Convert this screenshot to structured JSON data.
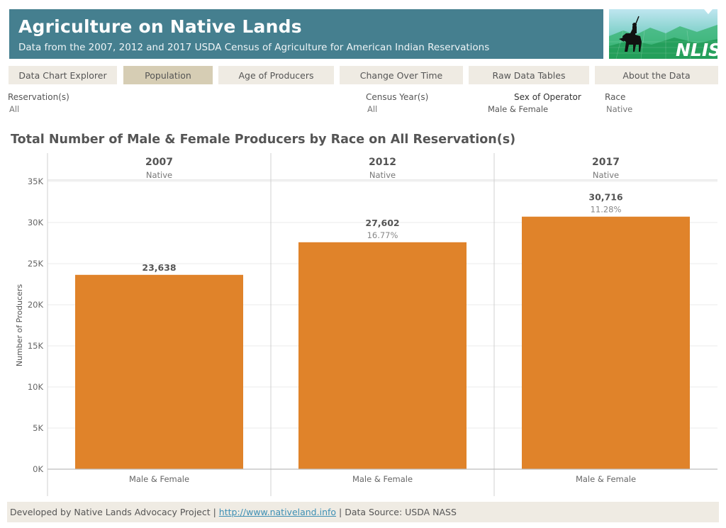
{
  "header": {
    "title": "Agriculture on Native Lands",
    "subtitle": "Data from the 2007, 2012 and 2017 USDA Census of Agriculture for American Indian Reservations"
  },
  "logo": {
    "icon": "horse-rider-icon",
    "text": "NLIS"
  },
  "tabs": [
    {
      "label": "Data Chart Explorer",
      "active": false
    },
    {
      "label": "Population",
      "active": true
    },
    {
      "label": "Age of Producers",
      "active": false
    },
    {
      "label": "Change Over Time",
      "active": false
    },
    {
      "label": "Raw Data Tables",
      "active": false
    },
    {
      "label": "About the Data",
      "active": false
    }
  ],
  "filters": {
    "reservation": {
      "label": "Reservation(s)",
      "value": "All"
    },
    "census_year": {
      "label": "Census Year(s)",
      "value": "All"
    },
    "sex": {
      "label": "Sex of Operator",
      "value": "Male &  Female"
    },
    "race": {
      "label": "Race",
      "value": "Native"
    }
  },
  "chart_title": "Total Number of Male &  Female Producers by Race on All Reservation(s)",
  "chart_data": {
    "type": "bar",
    "title": "Total Number of Male &  Female Producers by Race on All Reservation(s)",
    "ylabel": "Number of Producers",
    "ylim": [
      0,
      35000
    ],
    "yticks": [
      0,
      5000,
      10000,
      15000,
      20000,
      25000,
      30000,
      35000
    ],
    "ytick_labels": [
      "0K",
      "5K",
      "10K",
      "15K",
      "20K",
      "25K",
      "30K",
      "35K"
    ],
    "bar_color": "#e0832a",
    "panels": [
      {
        "year": "2007",
        "race": "Native",
        "category": "Male &  Female",
        "value": 23638,
        "value_label": "23,638",
        "change_label": ""
      },
      {
        "year": "2012",
        "race": "Native",
        "category": "Male &  Female",
        "value": 27602,
        "value_label": "27,602",
        "change_label": "16.77%"
      },
      {
        "year": "2017",
        "race": "Native",
        "category": "Male &  Female",
        "value": 30716,
        "value_label": "30,716",
        "change_label": "11.28%"
      }
    ]
  },
  "footer": {
    "prefix": "Developed by Native Lands Advocacy Project | ",
    "link": "http://www.nativeland.info",
    "suffix": " | Data Source: USDA NASS"
  },
  "colors": {
    "header_bg": "#457f8f",
    "tab_bg": "#efebe3",
    "tab_active_bg": "#d6cdb4",
    "bar": "#e0832a"
  }
}
